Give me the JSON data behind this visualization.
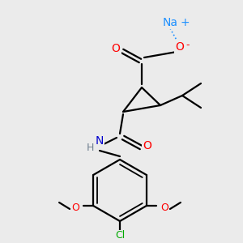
{
  "background_color": "#ebebeb",
  "atom_colors": {
    "O": "#ff0000",
    "N": "#0000cd",
    "Cl": "#00aa00",
    "Na": "#1e90ff",
    "H": "#708090",
    "C": "#000000"
  }
}
